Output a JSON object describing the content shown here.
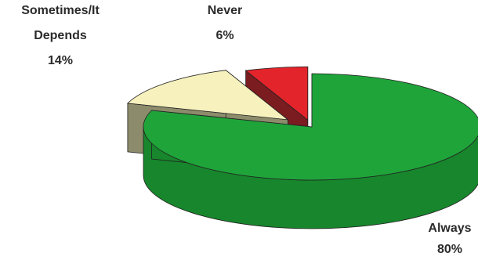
{
  "chart_data": {
    "type": "pie",
    "title": "",
    "slices": [
      {
        "label_lines": [
          "Always"
        ],
        "value": 80,
        "value_label": "80%",
        "color": "#1fa43a",
        "side_color": "#17862c"
      },
      {
        "label_lines": [
          "Sometimes/It",
          "Depends"
        ],
        "value": 14,
        "value_label": "14%",
        "color": "#f6f1bd",
        "side_color": "#8c8c6c"
      },
      {
        "label_lines": [
          "Never"
        ],
        "value": 6,
        "value_label": "6%",
        "color": "#e3242b",
        "side_color": "#7a1c20"
      }
    ],
    "style": "3d-exploded",
    "legend": "none"
  }
}
